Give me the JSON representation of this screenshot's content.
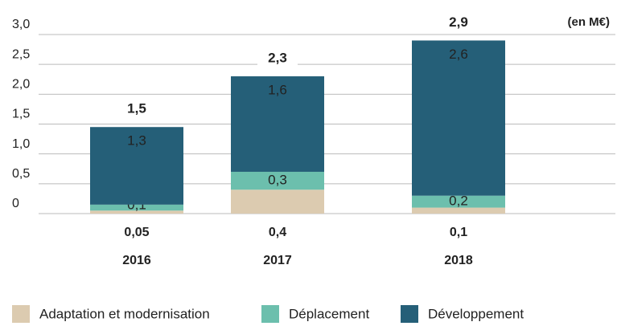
{
  "chart_data": {
    "type": "stacked_bar",
    "unit_label": "(en M€)",
    "categories": [
      "2016",
      "2017",
      "2018"
    ],
    "series": [
      {
        "name": "Adaptation et modernisation",
        "color": "#dccbb0",
        "values": [
          0.05,
          0.4,
          0.1
        ],
        "value_labels": [
          "0,05",
          "0,4",
          "0,1"
        ]
      },
      {
        "name": "Déplacement",
        "color": "#6cbfad",
        "values": [
          0.1,
          0.3,
          0.2
        ],
        "value_labels": [
          "0,1",
          "0,3",
          "0,2"
        ]
      },
      {
        "name": "Développement",
        "color": "#255f78",
        "values": [
          1.3,
          1.6,
          2.6
        ],
        "value_labels": [
          "1,3",
          "1,6",
          "2,6"
        ]
      }
    ],
    "totals": [
      1.5,
      2.3,
      2.9
    ],
    "total_labels": [
      "1,5",
      "2,3",
      "2,9"
    ],
    "ylim": [
      0,
      3
    ],
    "yticks": [
      0,
      {
        "value": 0.5,
        "label": "0,5"
      },
      {
        "value": 1,
        "label": "1,0"
      },
      {
        "value": 1.5,
        "label": "1,5"
      },
      {
        "value": 2,
        "label": "2,0"
      },
      {
        "value": 2.5,
        "label": "2,5"
      },
      {
        "value": 3,
        "label": "3,0"
      }
    ],
    "grid": true
  }
}
